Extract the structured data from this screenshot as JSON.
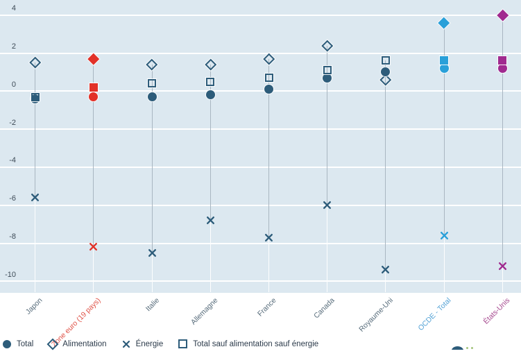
{
  "chart_data": {
    "type": "scatter",
    "title": "",
    "categories": [
      "Japon",
      "Zone euro (19 pays)",
      "Italie",
      "Allemagne",
      "France",
      "Canada",
      "Royaume-Uni",
      "OCDE - Total",
      "États-Unis"
    ],
    "category_colors": [
      "#2d5c7a",
      "#e23128",
      "#2d5c7a",
      "#2d5c7a",
      "#2d5c7a",
      "#2d5c7a",
      "#2d5c7a",
      "#29a0d9",
      "#a02a8f"
    ],
    "category_filled": [
      false,
      true,
      false,
      false,
      false,
      false,
      false,
      true,
      true
    ],
    "category_label_colors": [
      "#566b7a",
      "#e05348",
      "#566b7a",
      "#566b7a",
      "#566b7a",
      "#566b7a",
      "#566b7a",
      "#55a3d6",
      "#a74b90"
    ],
    "series": [
      {
        "name": "Total",
        "marker": "circle",
        "values": [
          -0.4,
          -0.3,
          -0.3,
          -0.2,
          0.1,
          0.7,
          1.0,
          1.2,
          1.2
        ]
      },
      {
        "name": "Alimentation",
        "marker": "diamond",
        "values": [
          1.5,
          1.7,
          1.4,
          1.4,
          1.7,
          2.4,
          0.6,
          3.6,
          4.0
        ]
      },
      {
        "name": "Énergie",
        "marker": "x",
        "values": [
          -5.6,
          -8.2,
          -8.5,
          -6.8,
          -7.7,
          -6.0,
          -9.4,
          -7.6,
          -9.2
        ]
      },
      {
        "name": "Total sauf alimentation sauf énergie",
        "marker": "square",
        "values": [
          -0.3,
          0.2,
          0.4,
          0.5,
          0.7,
          1.1,
          1.6,
          1.6,
          1.6
        ]
      }
    ],
    "yticks": [
      4,
      2,
      0,
      -2,
      -4,
      -6,
      -8,
      -10
    ],
    "ylim": [
      -10.6,
      4.8
    ],
    "xlabel": "",
    "ylabel": "",
    "grid": "horizontal-white-on-lightblue",
    "legend_position": "bottom-left"
  },
  "colors": {
    "plot_background": "#dce8f0",
    "page_background": "#ffffff",
    "gridline": "#ffffff",
    "stem_between_markers": "#a9b6c1",
    "stem_below_markers": "#fdfefe",
    "default_marker": "#2d5c7a",
    "euro_zone_red": "#e23128",
    "oecd_blue": "#29a0d9",
    "united_states_purple": "#a02a8f",
    "y_tick_label": "#3d4a56",
    "legend_text": "#2b3a4a"
  },
  "icons": {
    "legend_total": "filled-circle-marker-icon",
    "legend_alimentation": "hollow-diamond-marker-icon",
    "legend_energie": "x-cross-marker-icon",
    "legend_core": "hollow-square-marker-icon",
    "bottom_right": "cut-off-widget-icon"
  }
}
